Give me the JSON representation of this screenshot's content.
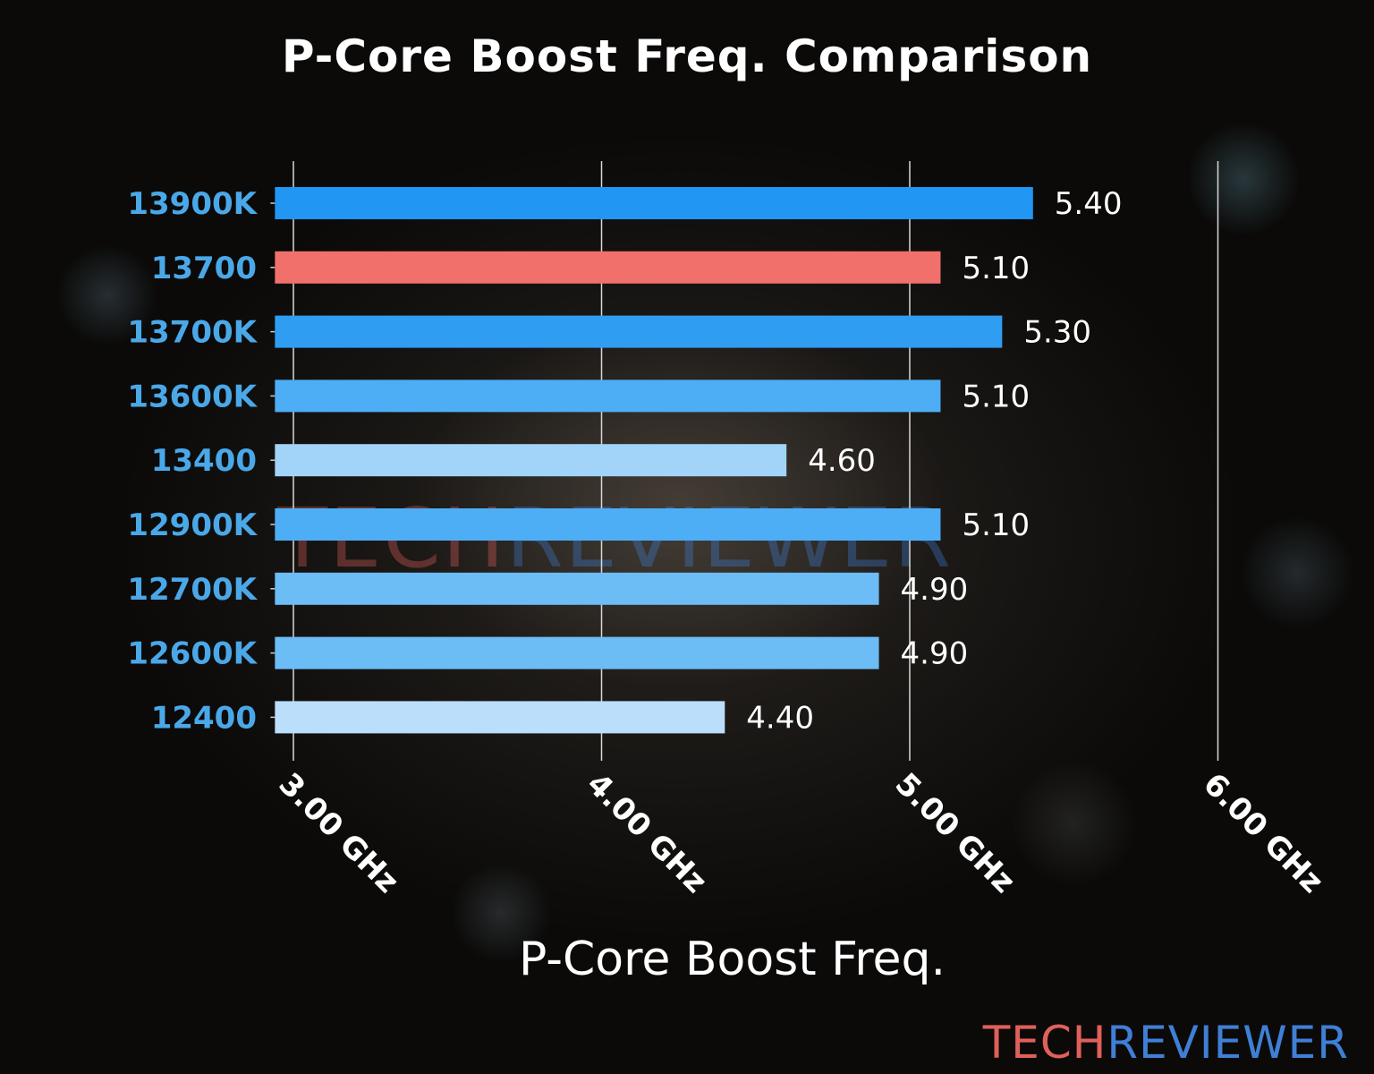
{
  "chart_data": {
    "type": "bar",
    "orientation": "horizontal",
    "title": "P-Core Boost Freq. Comparison",
    "xlabel": "P-Core Boost Freq.",
    "ylabel": "",
    "categories": [
      "13900K",
      "13700",
      "13700K",
      "13600K",
      "13400",
      "12900K",
      "12700K",
      "12600K",
      "12400"
    ],
    "values": [
      5.4,
      5.1,
      5.3,
      5.1,
      4.6,
      5.1,
      4.9,
      4.9,
      4.4
    ],
    "value_labels": [
      "5.40",
      "5.10",
      "5.30",
      "5.10",
      "4.60",
      "5.10",
      "4.90",
      "4.90",
      "4.40"
    ],
    "bar_colors": [
      "#2196F3",
      "#F2706C",
      "#2F9DF2",
      "#4DAEF5",
      "#A2D3F9",
      "#4DAEF5",
      "#6CBCF6",
      "#6CBCF6",
      "#BBDEFB"
    ],
    "xticks": [
      3,
      4,
      5,
      6
    ],
    "xtick_labels": [
      "3.00 GHz",
      "4.00 GHz",
      "5.00 GHz",
      "6.00 GHz"
    ],
    "xlim": [
      2.94,
      6.0
    ],
    "grid": "vertical",
    "category_label_color": "#4AA8E8"
  },
  "watermark": {
    "part1": "TECH",
    "part2": "REVIEWER"
  }
}
